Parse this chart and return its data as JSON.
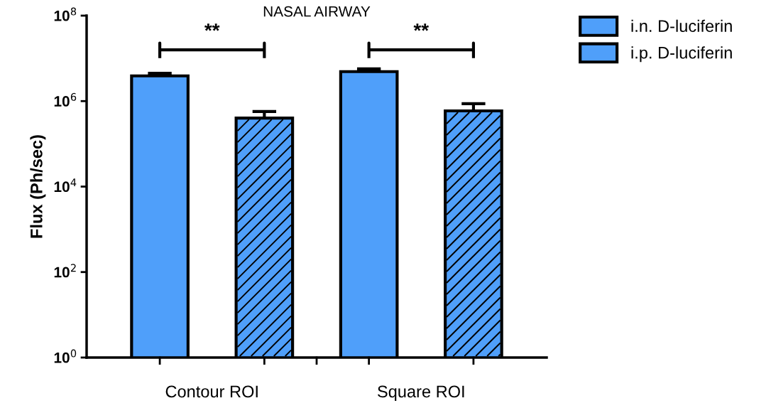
{
  "chart_data": {
    "type": "bar",
    "title": "NASAL AIRWAY",
    "ylabel": "Flux (Ph/sec)",
    "categories": [
      "Contour ROI",
      "Square ROI"
    ],
    "series": [
      {
        "name": "i.n. D-luciferin",
        "color": "#4f9ffa",
        "values": [
          3900000,
          4900000
        ],
        "errors": [
          [
            3900000,
            4500000
          ],
          [
            4900000,
            5700000
          ]
        ]
      },
      {
        "name": "i.p. D-luciferin",
        "color": "#4f9ffa",
        "values": [
          400000,
          590000
        ],
        "errors": [
          [
            400000,
            570000
          ],
          [
            590000,
            870000
          ]
        ]
      }
    ],
    "log": true,
    "ylim": [
      1,
      100000000
    ],
    "yticks": [
      {
        "value": 1,
        "label": "10$^{0}$"
      },
      {
        "value": 100,
        "label": "10$^{2}$"
      },
      {
        "value": 10000,
        "label": "10$^{4}$"
      },
      {
        "value": 1000000,
        "label": "10$^{6}$"
      },
      {
        "value": 100000000,
        "label": "10$^{8}$"
      }
    ],
    "annotations": [
      "**",
      "**"
    ],
    "grid": false,
    "legend": "top right"
  }
}
